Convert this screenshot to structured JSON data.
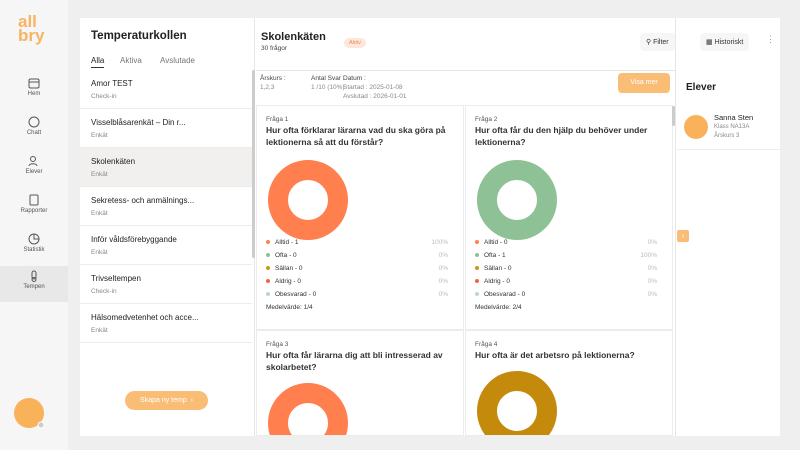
{
  "logo": [
    "all",
    "bry"
  ],
  "nav": [
    "Hem",
    "Chatt",
    "Elever",
    "Rapporter",
    "Statistik",
    "Tempen"
  ],
  "list_panel": {
    "title": "Temperaturkollen",
    "tabs": [
      "Alla",
      "Aktiva",
      "Avslutade"
    ],
    "items": [
      {
        "title": "Amor TEST",
        "type": "Check-in"
      },
      {
        "title": "Visselblåsarenkät – Din r...",
        "type": "Enkät"
      },
      {
        "title": "Skolenkäten",
        "type": "Enkät"
      },
      {
        "title": "Sekretess- och anmälnings...",
        "type": "Enkät"
      },
      {
        "title": "Inför våldsförebyggande",
        "type": "Enkät"
      },
      {
        "title": "Trivseltempen",
        "type": "Check-in"
      },
      {
        "title": "Hälsomedvetenhet och acce...",
        "type": "Enkät"
      }
    ],
    "create_button": "Skapa ny temp"
  },
  "survey": {
    "title": "Skolenkäten",
    "question_count": "30 frågor",
    "status": "Aktiv",
    "filter": "Filter",
    "history": "Historiskt",
    "info": {
      "grade_label": "Årskurs :",
      "grade": "1,2,3",
      "answers_label": "Antal Svar :",
      "answers": "1 /10 (10%)",
      "date_label": "Datum :",
      "started": "Startad : 2025-01-08",
      "ended": "Avslutad : 2026-01-01"
    },
    "show_more": "Visa mer",
    "questions": [
      {
        "number": "Fråga 1",
        "text": "Hur ofta förklarar lärarna vad du ska göra på lektionerna så att du förstår?",
        "donut_color": "#ff7f4f",
        "answers": [
          {
            "label": "Alltid - 1",
            "percent": "100%",
            "color": "#ff7f4f"
          },
          {
            "label": "Ofta - 0",
            "percent": "0%",
            "color": "#8fc197"
          },
          {
            "label": "Sällan - 0",
            "percent": "0%",
            "color": "#c99a1a"
          },
          {
            "label": "Aldrig - 0",
            "percent": "0%",
            "color": "#f0683a"
          },
          {
            "label": "Obesvarad - 0",
            "percent": "0%",
            "color": "#bcd9bd"
          }
        ],
        "mean": "Medelvärde: 1/4"
      },
      {
        "number": "Fråga 2",
        "text": "Hur ofta får du den hjälp du behöver under lektionerna?",
        "donut_color": "#8fc197",
        "answers": [
          {
            "label": "Alltid - 0",
            "percent": "0%",
            "color": "#ff7f4f"
          },
          {
            "label": "Ofta - 1",
            "percent": "100%",
            "color": "#8fc197"
          },
          {
            "label": "Sällan - 0",
            "percent": "0%",
            "color": "#c99a1a"
          },
          {
            "label": "Aldrig - 0",
            "percent": "0%",
            "color": "#f0683a"
          },
          {
            "label": "Obesvarad - 0",
            "percent": "0%",
            "color": "#bcd9bd"
          }
        ],
        "mean": "Medelvärde: 2/4"
      },
      {
        "number": "Fråga 3",
        "text": "Hur ofta får lärarna dig att bli intresserad av skolarbetet?",
        "donut_color": "#ff7f4f"
      },
      {
        "number": "Fråga 4",
        "text": "Hur ofta är det arbetsro på lektionerna?",
        "donut_color": "#c48a0c"
      }
    ]
  },
  "students": {
    "title": "Elever",
    "items": [
      {
        "name": "Sanna Sten",
        "class": "Klass NA13A",
        "grade": "Årskurs 3"
      }
    ]
  }
}
